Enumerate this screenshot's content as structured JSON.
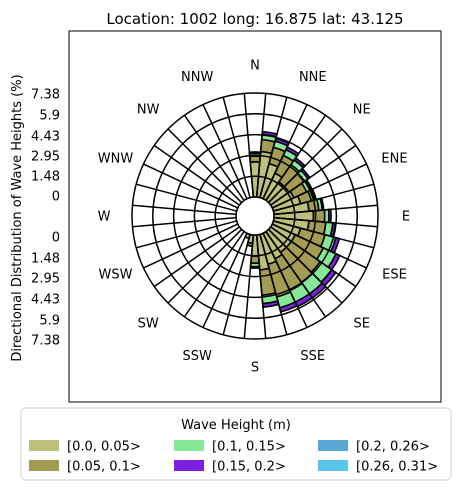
{
  "chart_data": {
    "type": "windrose",
    "title": "Location: 1002 long: 16.875 lat: 43.125",
    "ylabel": "Directional Distribution of Wave Heights (%)",
    "directions": [
      "N",
      "NNE",
      "NE",
      "ENE",
      "E",
      "ESE",
      "SE",
      "SSE",
      "S",
      "SSW",
      "SW",
      "WSW",
      "W",
      "WNW",
      "NW",
      "NNW"
    ],
    "sector_count": 36,
    "radial_ticks": [
      "0",
      "1.48",
      "2.95",
      "4.43",
      "5.9",
      "7.38"
    ],
    "radial_max": 7.38,
    "legend": {
      "title": "Wave Height (m)",
      "bins": [
        {
          "label": "[0.0, 0.05>",
          "color": "#bcc07a"
        },
        {
          "label": "[0.05, 0.1>",
          "color": "#a39c52"
        },
        {
          "label": "[0.1, 0.15>",
          "color": "#84e898"
        },
        {
          "label": "[0.15, 0.2>",
          "color": "#7d1fe0"
        },
        {
          "label": "[0.2, 0.26>",
          "color": "#5aa8d6"
        },
        {
          "label": "[0.26, 0.31>",
          "color": "#58c6e6"
        }
      ]
    },
    "sectors": [
      {
        "dir_deg": 10,
        "values": [
          3.25,
          0.85,
          0.37,
          0.2,
          0,
          0
        ]
      },
      {
        "dir_deg": 20,
        "values": [
          2.5,
          1.2,
          0.45,
          0.2,
          0,
          0
        ]
      },
      {
        "dir_deg": 30,
        "values": [
          2.0,
          1.4,
          0.45,
          0.2,
          0,
          0
        ]
      },
      {
        "dir_deg": 40,
        "values": [
          1.6,
          1.5,
          0.4,
          0.18,
          0,
          0
        ]
      },
      {
        "dir_deg": 50,
        "values": [
          1.6,
          1.3,
          0.35,
          0.15,
          0,
          0
        ]
      },
      {
        "dir_deg": 60,
        "values": [
          1.7,
          1.0,
          0.3,
          0.12,
          0,
          0
        ]
      },
      {
        "dir_deg": 70,
        "values": [
          2.0,
          0.8,
          0.25,
          0.1,
          0,
          0
        ]
      },
      {
        "dir_deg": 80,
        "values": [
          2.5,
          0.7,
          0.25,
          0.1,
          0,
          0
        ]
      },
      {
        "dir_deg": 90,
        "values": [
          2.8,
          0.8,
          0.3,
          0.15,
          0,
          0
        ]
      },
      {
        "dir_deg": 100,
        "values": [
          2.5,
          1.2,
          0.5,
          0.18,
          0,
          0
        ]
      },
      {
        "dir_deg": 110,
        "values": [
          2.0,
          1.8,
          0.8,
          0.25,
          0,
          0
        ]
      },
      {
        "dir_deg": 120,
        "values": [
          1.8,
          2.2,
          1.0,
          0.3,
          0,
          0
        ]
      },
      {
        "dir_deg": 130,
        "values": [
          1.8,
          2.5,
          1.0,
          0.35,
          0,
          0
        ]
      },
      {
        "dir_deg": 140,
        "values": [
          1.8,
          2.6,
          1.0,
          0.35,
          0,
          0
        ]
      },
      {
        "dir_deg": 150,
        "values": [
          2.0,
          2.5,
          0.9,
          0.35,
          0,
          0
        ]
      },
      {
        "dir_deg": 160,
        "values": [
          2.2,
          2.4,
          0.8,
          0.3,
          0,
          0
        ]
      },
      {
        "dir_deg": 170,
        "values": [
          2.5,
          1.8,
          0.6,
          0.25,
          0,
          0
        ]
      },
      {
        "dir_deg": 180,
        "values": [
          1.5,
          0.5,
          0.25,
          0.1,
          0,
          0
        ]
      },
      {
        "dir_deg": 190,
        "values": [
          0.6,
          0.2,
          0,
          0,
          0,
          0
        ]
      },
      {
        "dir_deg": 200,
        "values": [
          0.3,
          0,
          0,
          0,
          0,
          0
        ]
      },
      {
        "dir_deg": 0,
        "values": [
          2.5,
          0.4,
          0.2,
          0.1,
          0,
          0
        ]
      }
    ]
  }
}
